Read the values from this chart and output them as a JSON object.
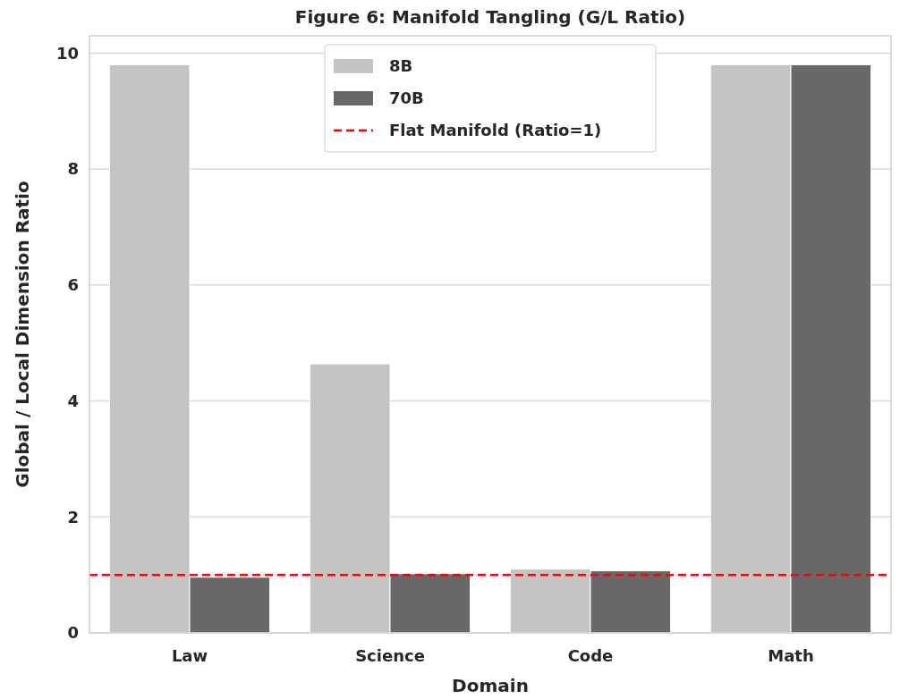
{
  "chart_data": {
    "type": "bar",
    "title": "Figure 6:  Manifold Tangling (G/L Ratio)",
    "xlabel": "Domain",
    "ylabel": "Global / Local Dimension Ratio",
    "categories": [
      "Law",
      "Science",
      "Code",
      "Math"
    ],
    "series": [
      {
        "name": "8B",
        "color": "#c4c4c4",
        "values": [
          9.8,
          4.64,
          1.1,
          9.8
        ]
      },
      {
        "name": "70B",
        "color": "#686868",
        "values": [
          0.96,
          1.02,
          1.07,
          9.8
        ]
      }
    ],
    "ylim": [
      0,
      10.3
    ],
    "yticks": [
      0,
      2,
      4,
      6,
      8,
      10
    ],
    "grid": "y",
    "legend": "top",
    "ref_lines": [
      {
        "axis": "y",
        "value": 1,
        "label": "Flat Manifold (Ratio=1)",
        "color": "#ff0000",
        "line_style": "dashed"
      }
    ]
  }
}
